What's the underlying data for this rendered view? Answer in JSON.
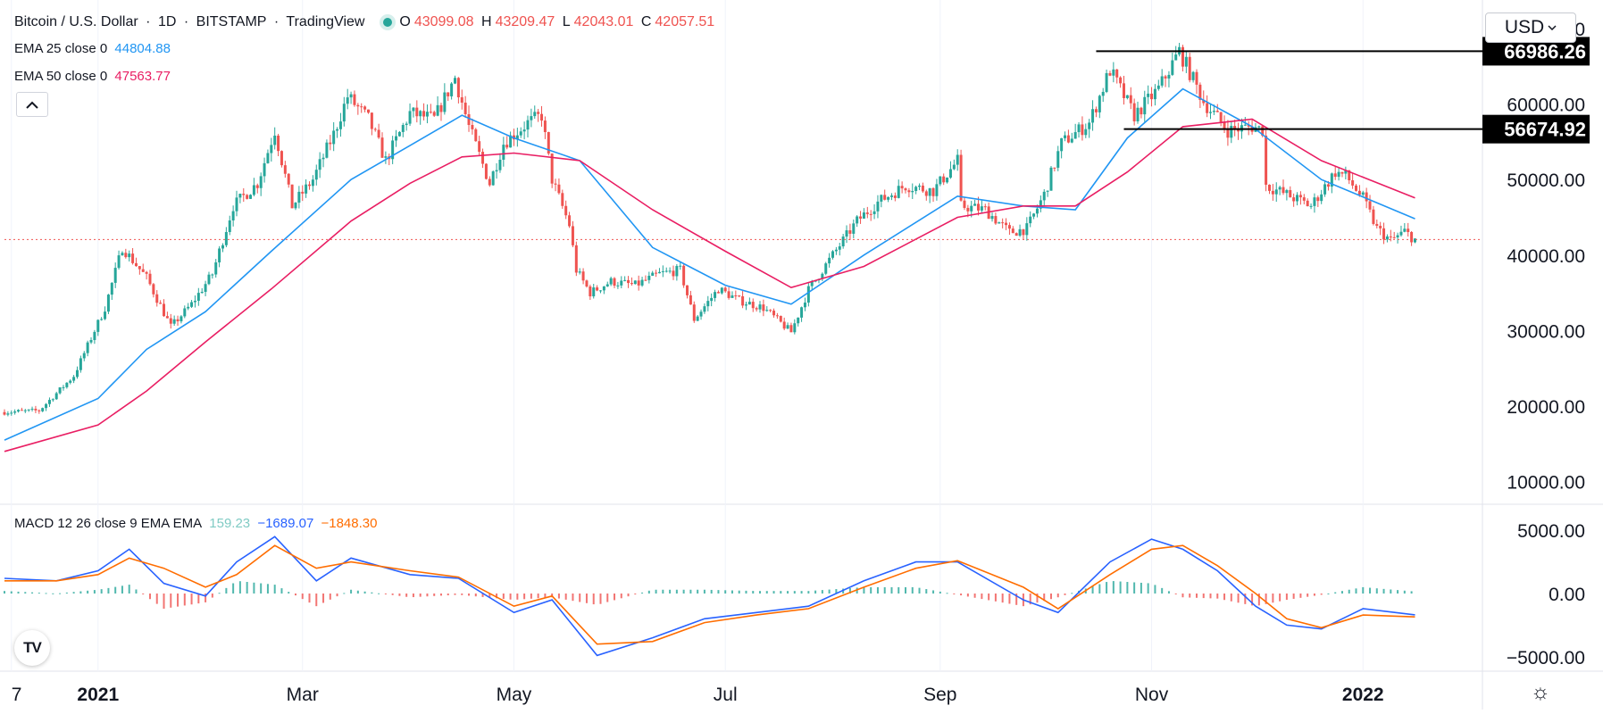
{
  "header": {
    "symbol": "Bitcoin / U.S. Dollar",
    "sep1": "·",
    "interval": "1D",
    "sep2": "·",
    "exchange": "BITSTAMP",
    "sep3": "·",
    "provider": "TradingView",
    "ohlc": {
      "o_label": "O",
      "o": "43099.08",
      "h_label": "H",
      "h": "43209.47",
      "l_label": "L",
      "l": "42043.01",
      "c_label": "C",
      "c": "42057.51"
    }
  },
  "indicators": {
    "ema25": {
      "label": "EMA 25 close 0",
      "value": "44804.88",
      "color": "#2196f3"
    },
    "ema50": {
      "label": "EMA 50 close 0",
      "value": "47563.77",
      "color": "#e91e63"
    },
    "macd": {
      "label": "MACD 12 26 close 9 EMA EMA",
      "hist": "159.23",
      "hist_color": "#80cbc4",
      "macd": "−1689.07",
      "macd_color": "#2962ff",
      "signal": "−1848.30",
      "signal_color": "#ff6d00"
    }
  },
  "controls": {
    "currency": "USD",
    "collapse_icon": "chevron-up-icon",
    "logo": "TV",
    "settings_icon": "gear-icon"
  },
  "colors": {
    "up": "#26a69a",
    "down": "#ef5350",
    "last_price_line": "#ef5350",
    "level_line": "#000000"
  },
  "chart_data": [
    {
      "type": "candlestick",
      "title": "Bitcoin / U.S. Dollar · 1D · BITSTAMP",
      "y_ticks": [
        "70000.00",
        "60000.00",
        "50000.00",
        "40000.00",
        "30000.00",
        "20000.00",
        "10000.00"
      ],
      "y_tick_values": [
        70000,
        60000,
        50000,
        40000,
        30000,
        20000,
        10000
      ],
      "ylim": [
        7000,
        72000
      ],
      "x_ticks": [
        "7",
        "2021",
        "Mar",
        "May",
        "Jul",
        "Sep",
        "Nov",
        "2022"
      ],
      "x_tick_dates": [
        "2020-12-07",
        "2021-01-01",
        "2021-03-01",
        "2021-05-01",
        "2021-07-01",
        "2021-09-01",
        "2021-11-01",
        "2022-01-01"
      ],
      "x_range": [
        "2020-12-05",
        "2022-01-20"
      ],
      "last_price": 42057.51,
      "price_levels": [
        {
          "label": "66986.26",
          "value": 66986.26,
          "from": "2021-10-16"
        },
        {
          "label": "56674.92",
          "value": 56674.92,
          "from": "2021-10-24"
        }
      ],
      "series": [
        {
          "name": "BTCUSD close",
          "x": [
            "2020-12-05",
            "2020-12-15",
            "2020-12-25",
            "2021-01-03",
            "2021-01-08",
            "2021-01-15",
            "2021-01-22",
            "2021-01-28",
            "2021-02-03",
            "2021-02-09",
            "2021-02-16",
            "2021-02-21",
            "2021-02-26",
            "2021-03-04",
            "2021-03-10",
            "2021-03-14",
            "2021-03-20",
            "2021-03-25",
            "2021-04-01",
            "2021-04-08",
            "2021-04-14",
            "2021-04-18",
            "2021-04-24",
            "2021-04-28",
            "2021-05-05",
            "2021-05-09",
            "2021-05-12",
            "2021-05-17",
            "2021-05-19",
            "2021-05-23",
            "2021-05-29",
            "2021-06-05",
            "2021-06-12",
            "2021-06-18",
            "2021-06-22",
            "2021-06-29",
            "2021-07-05",
            "2021-07-12",
            "2021-07-20",
            "2021-07-25",
            "2021-08-01",
            "2021-08-08",
            "2021-08-14",
            "2021-08-22",
            "2021-08-30",
            "2021-09-06",
            "2021-09-07",
            "2021-09-14",
            "2021-09-21",
            "2021-09-26",
            "2021-10-01",
            "2021-10-06",
            "2021-10-14",
            "2021-10-20",
            "2021-10-27",
            "2021-11-03",
            "2021-11-09",
            "2021-11-12",
            "2021-11-16",
            "2021-11-23",
            "2021-11-30",
            "2021-12-03",
            "2021-12-04",
            "2021-12-10",
            "2021-12-17",
            "2021-12-24",
            "2021-12-27",
            "2022-01-01",
            "2022-01-05",
            "2022-01-09",
            "2022-01-13",
            "2022-01-16"
          ],
          "values": [
            19200,
            19400,
            24000,
            33000,
            41000,
            37000,
            30500,
            33500,
            37500,
            46500,
            49500,
            56500,
            46500,
            50000,
            56000,
            61000,
            58000,
            52500,
            58800,
            58000,
            63500,
            57000,
            49500,
            54800,
            57500,
            58500,
            50000,
            44000,
            38000,
            35000,
            36500,
            36000,
            37500,
            38000,
            31500,
            35500,
            34000,
            33000,
            29800,
            35400,
            40000,
            44500,
            47000,
            49200,
            48500,
            52500,
            46500,
            46000,
            43000,
            43500,
            48000,
            54800,
            57500,
            64500,
            58500,
            62000,
            66990,
            64200,
            60300,
            56500,
            57000,
            56600,
            49200,
            48000,
            46500,
            51000,
            50500,
            47500,
            43500,
            41900,
            43100,
            42057
          ]
        },
        {
          "name": "EMA 25",
          "x": [
            "2020-12-05",
            "2021-01-01",
            "2021-01-15",
            "2021-02-01",
            "2021-02-20",
            "2021-03-15",
            "2021-04-01",
            "2021-04-16",
            "2021-05-01",
            "2021-05-20",
            "2021-06-10",
            "2021-07-01",
            "2021-07-20",
            "2021-08-10",
            "2021-09-06",
            "2021-09-25",
            "2021-10-10",
            "2021-10-25",
            "2021-11-10",
            "2021-11-30",
            "2021-12-20",
            "2022-01-16"
          ],
          "values": [
            15500,
            21000,
            27500,
            32500,
            40500,
            50000,
            54500,
            58500,
            55500,
            52500,
            41000,
            36000,
            33500,
            40000,
            47800,
            46500,
            46000,
            55500,
            62000,
            57000,
            50000,
            44805
          ]
        },
        {
          "name": "EMA 50",
          "x": [
            "2020-12-05",
            "2021-01-01",
            "2021-01-15",
            "2021-02-01",
            "2021-02-20",
            "2021-03-15",
            "2021-04-01",
            "2021-04-16",
            "2021-05-01",
            "2021-05-20",
            "2021-06-10",
            "2021-07-01",
            "2021-07-20",
            "2021-08-10",
            "2021-09-06",
            "2021-09-25",
            "2021-10-10",
            "2021-10-25",
            "2021-11-10",
            "2021-11-30",
            "2021-12-20",
            "2022-01-16"
          ],
          "values": [
            14000,
            17500,
            22000,
            28500,
            35500,
            44500,
            49500,
            53000,
            53500,
            52500,
            46000,
            40500,
            35700,
            38500,
            45000,
            46500,
            46500,
            51000,
            57000,
            58000,
            52500,
            47564
          ]
        }
      ]
    },
    {
      "type": "line",
      "title": "MACD 12 26 close 9 EMA EMA",
      "y_ticks": [
        "5000.00",
        "0.00",
        "−5000.00"
      ],
      "y_tick_values": [
        5000,
        0,
        -5000
      ],
      "ylim": [
        -6000,
        6000
      ],
      "series": [
        {
          "name": "MACD",
          "x": [
            "2020-12-05",
            "2020-12-20",
            "2021-01-01",
            "2021-01-10",
            "2021-01-20",
            "2021-02-01",
            "2021-02-10",
            "2021-02-21",
            "2021-03-05",
            "2021-03-15",
            "2021-04-01",
            "2021-04-15",
            "2021-05-01",
            "2021-05-12",
            "2021-05-25",
            "2021-06-10",
            "2021-06-25",
            "2021-07-10",
            "2021-07-25",
            "2021-08-10",
            "2021-08-25",
            "2021-09-06",
            "2021-09-25",
            "2021-10-05",
            "2021-10-20",
            "2021-11-01",
            "2021-11-10",
            "2021-11-20",
            "2021-12-01",
            "2021-12-10",
            "2021-12-20",
            "2022-01-01",
            "2022-01-16"
          ],
          "values": [
            1200,
            1000,
            1800,
            3500,
            800,
            -200,
            2500,
            4500,
            1000,
            2800,
            1500,
            1200,
            -1500,
            -500,
            -4900,
            -3500,
            -2000,
            -1500,
            -1000,
            1000,
            2500,
            2500,
            -500,
            -1500,
            2500,
            4300,
            3500,
            1800,
            -1000,
            -2500,
            -2800,
            -1200,
            -1689
          ]
        },
        {
          "name": "Signal",
          "x": [
            "2020-12-05",
            "2020-12-20",
            "2021-01-01",
            "2021-01-10",
            "2021-01-20",
            "2021-02-01",
            "2021-02-10",
            "2021-02-21",
            "2021-03-05",
            "2021-03-15",
            "2021-04-01",
            "2021-04-15",
            "2021-05-01",
            "2021-05-12",
            "2021-05-25",
            "2021-06-10",
            "2021-06-25",
            "2021-07-10",
            "2021-07-25",
            "2021-08-10",
            "2021-08-25",
            "2021-09-06",
            "2021-09-25",
            "2021-10-05",
            "2021-10-20",
            "2021-11-01",
            "2021-11-10",
            "2021-11-20",
            "2021-12-01",
            "2021-12-10",
            "2021-12-20",
            "2022-01-01",
            "2022-01-16"
          ],
          "values": [
            1000,
            1000,
            1500,
            2800,
            2000,
            500,
            1500,
            3800,
            2000,
            2500,
            1800,
            1300,
            -1000,
            -200,
            -4000,
            -3800,
            -2300,
            -1700,
            -1200,
            500,
            2000,
            2600,
            500,
            -1200,
            1500,
            3500,
            3800,
            2200,
            0,
            -2000,
            -2700,
            -1700,
            -1848
          ]
        }
      ],
      "histogram": {
        "name": "Histogram",
        "x": [
          "2020-12-05",
          "2020-12-20",
          "2021-01-01",
          "2021-01-10",
          "2021-01-20",
          "2021-02-01",
          "2021-02-10",
          "2021-02-21",
          "2021-03-05",
          "2021-03-15",
          "2021-04-01",
          "2021-04-15",
          "2021-05-01",
          "2021-05-12",
          "2021-05-25",
          "2021-06-10",
          "2021-06-25",
          "2021-07-10",
          "2021-07-25",
          "2021-08-10",
          "2021-08-25",
          "2021-09-06",
          "2021-09-25",
          "2021-10-05",
          "2021-10-20",
          "2021-11-01",
          "2021-11-10",
          "2021-11-20",
          "2021-12-01",
          "2021-12-10",
          "2021-12-20",
          "2022-01-01",
          "2022-01-16"
        ],
        "values": [
          200,
          0,
          300,
          700,
          -1200,
          -700,
          1000,
          700,
          -1000,
          300,
          -300,
          -100,
          -500,
          -300,
          -900,
          300,
          300,
          200,
          200,
          500,
          500,
          -100,
          -1000,
          -300,
          1000,
          800,
          -300,
          -400,
          -1000,
          -500,
          -100,
          500,
          159
        ]
      }
    }
  ]
}
